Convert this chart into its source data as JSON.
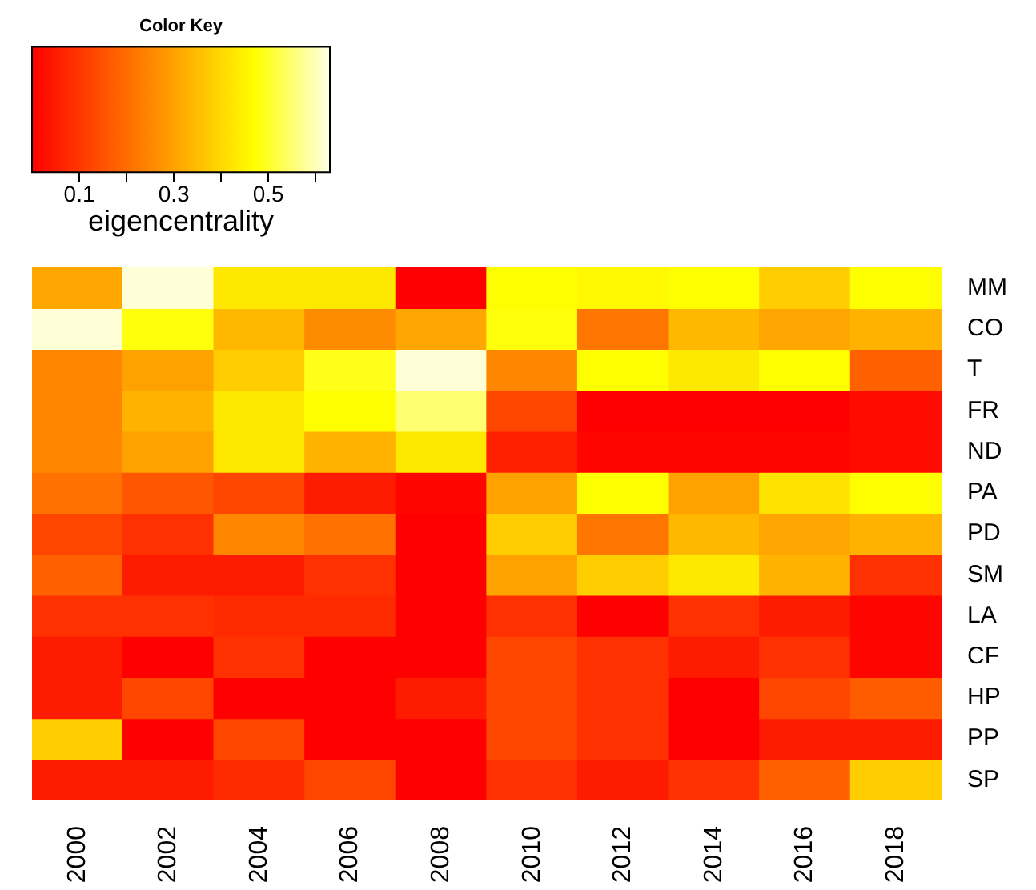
{
  "chart_data": {
    "type": "heatmap",
    "legend_title": "Color Key",
    "clabel": "eigencentrality",
    "categories": [
      "2000",
      "2002",
      "2004",
      "2006",
      "2008",
      "2010",
      "2012",
      "2014",
      "2016",
      "2018"
    ],
    "y_categories": [
      "MM",
      "CO",
      "T",
      "FR",
      "ND",
      "PA",
      "PD",
      "SM",
      "LA",
      "CF",
      "HP",
      "PP",
      "SP"
    ],
    "cells": [
      [
        0.31,
        0.62,
        0.43,
        0.43,
        0.0,
        0.47,
        0.46,
        0.47,
        0.38,
        0.47
      ],
      [
        0.62,
        0.48,
        0.34,
        0.26,
        0.31,
        0.48,
        0.22,
        0.34,
        0.31,
        0.33
      ],
      [
        0.25,
        0.3,
        0.38,
        0.49,
        0.62,
        0.25,
        0.47,
        0.43,
        0.47,
        0.18
      ],
      [
        0.25,
        0.33,
        0.43,
        0.47,
        0.55,
        0.13,
        0.0,
        0.0,
        0.0,
        0.02
      ],
      [
        0.25,
        0.3,
        0.43,
        0.33,
        0.43,
        0.06,
        0.01,
        0.01,
        0.01,
        0.02
      ],
      [
        0.21,
        0.16,
        0.13,
        0.05,
        0.01,
        0.3,
        0.47,
        0.3,
        0.42,
        0.47
      ],
      [
        0.13,
        0.09,
        0.25,
        0.21,
        0.0,
        0.38,
        0.22,
        0.34,
        0.31,
        0.33
      ],
      [
        0.18,
        0.05,
        0.05,
        0.09,
        0.0,
        0.3,
        0.38,
        0.43,
        0.33,
        0.09
      ],
      [
        0.09,
        0.09,
        0.08,
        0.08,
        0.0,
        0.09,
        0.0,
        0.09,
        0.05,
        0.01
      ],
      [
        0.05,
        0.0,
        0.09,
        0.0,
        0.0,
        0.13,
        0.09,
        0.05,
        0.09,
        0.01
      ],
      [
        0.05,
        0.13,
        0.0,
        0.0,
        0.05,
        0.13,
        0.09,
        0.0,
        0.13,
        0.17
      ],
      [
        0.38,
        0.0,
        0.13,
        0.0,
        0.0,
        0.13,
        0.09,
        0.0,
        0.05,
        0.05
      ],
      [
        0.05,
        0.05,
        0.08,
        0.13,
        0.0,
        0.09,
        0.05,
        0.09,
        0.18,
        0.38
      ]
    ],
    "clim": [
      0,
      0.63
    ],
    "cticks": [
      0.1,
      {
        "value": 0.2,
        "label": null
      },
      0.3,
      {
        "value": 0.4,
        "label": null
      },
      0.5,
      {
        "value": 0.6,
        "label": null
      }
    ]
  }
}
